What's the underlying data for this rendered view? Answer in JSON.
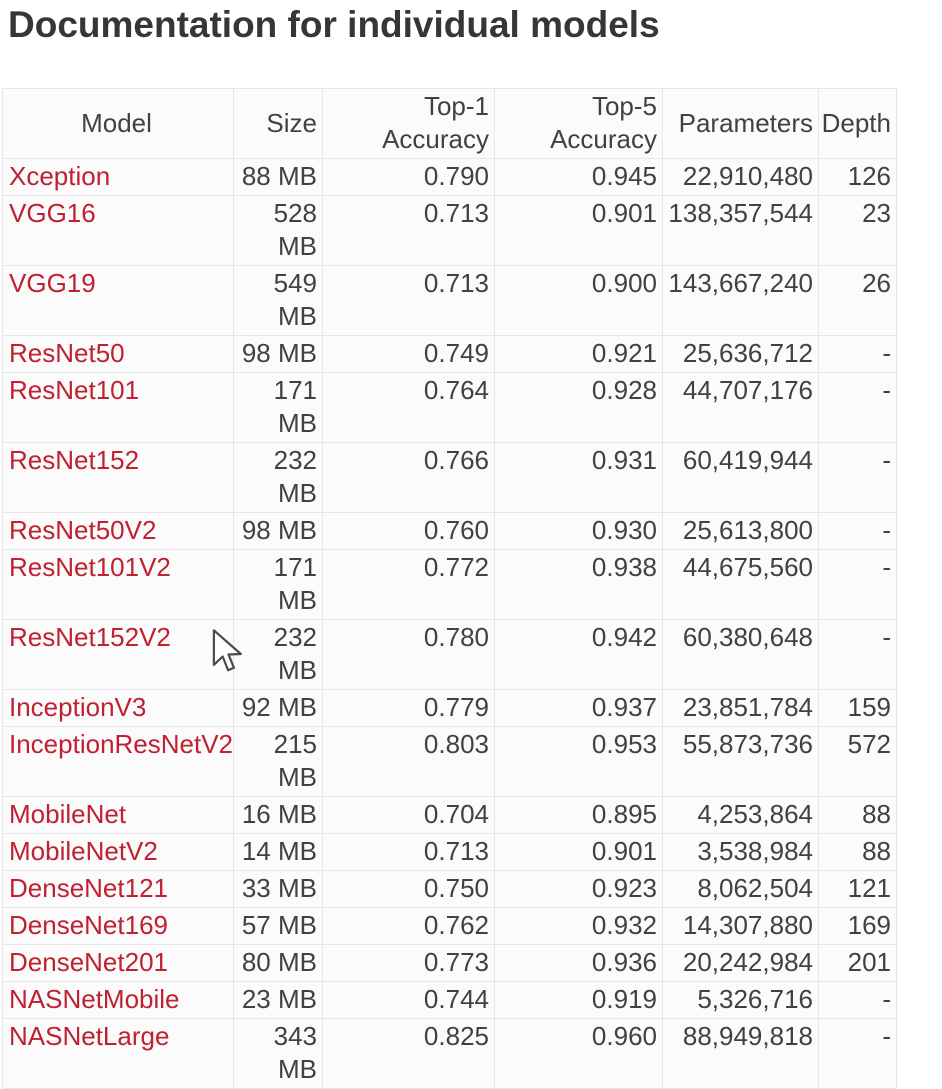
{
  "page": {
    "title": "Documentation for individual models"
  },
  "colors": {
    "link": "#bf2130",
    "text": "#3e4145",
    "border": "#e6e6e6",
    "cell_bg": "#fbfbfb",
    "title": "#363636"
  },
  "cursor": {
    "icon": "arrow-pointer"
  },
  "table": {
    "columns": [
      {
        "key": "model",
        "label": "Model"
      },
      {
        "key": "size",
        "label": "Size"
      },
      {
        "key": "top1",
        "label": "Top-1 Accuracy"
      },
      {
        "key": "top5",
        "label": "Top-5 Accuracy"
      },
      {
        "key": "params",
        "label": "Parameters"
      },
      {
        "key": "depth",
        "label": "Depth"
      }
    ],
    "rows": [
      {
        "model": "Xception",
        "size": "88 MB",
        "top1": "0.790",
        "top5": "0.945",
        "params": "22,910,480",
        "depth": "126"
      },
      {
        "model": "VGG16",
        "size": "528 MB",
        "top1": "0.713",
        "top5": "0.901",
        "params": "138,357,544",
        "depth": "23"
      },
      {
        "model": "VGG19",
        "size": "549 MB",
        "top1": "0.713",
        "top5": "0.900",
        "params": "143,667,240",
        "depth": "26"
      },
      {
        "model": "ResNet50",
        "size": "98 MB",
        "top1": "0.749",
        "top5": "0.921",
        "params": "25,636,712",
        "depth": "-"
      },
      {
        "model": "ResNet101",
        "size": "171 MB",
        "top1": "0.764",
        "top5": "0.928",
        "params": "44,707,176",
        "depth": "-"
      },
      {
        "model": "ResNet152",
        "size": "232 MB",
        "top1": "0.766",
        "top5": "0.931",
        "params": "60,419,944",
        "depth": "-"
      },
      {
        "model": "ResNet50V2",
        "size": "98 MB",
        "top1": "0.760",
        "top5": "0.930",
        "params": "25,613,800",
        "depth": "-"
      },
      {
        "model": "ResNet101V2",
        "size": "171 MB",
        "top1": "0.772",
        "top5": "0.938",
        "params": "44,675,560",
        "depth": "-"
      },
      {
        "model": "ResNet152V2",
        "size": "232 MB",
        "top1": "0.780",
        "top5": "0.942",
        "params": "60,380,648",
        "depth": "-"
      },
      {
        "model": "InceptionV3",
        "size": "92 MB",
        "top1": "0.779",
        "top5": "0.937",
        "params": "23,851,784",
        "depth": "159"
      },
      {
        "model": "InceptionResNetV2",
        "size": "215 MB",
        "top1": "0.803",
        "top5": "0.953",
        "params": "55,873,736",
        "depth": "572"
      },
      {
        "model": "MobileNet",
        "size": "16 MB",
        "top1": "0.704",
        "top5": "0.895",
        "params": "4,253,864",
        "depth": "88"
      },
      {
        "model": "MobileNetV2",
        "size": "14 MB",
        "top1": "0.713",
        "top5": "0.901",
        "params": "3,538,984",
        "depth": "88"
      },
      {
        "model": "DenseNet121",
        "size": "33 MB",
        "top1": "0.750",
        "top5": "0.923",
        "params": "8,062,504",
        "depth": "121"
      },
      {
        "model": "DenseNet169",
        "size": "57 MB",
        "top1": "0.762",
        "top5": "0.932",
        "params": "14,307,880",
        "depth": "169"
      },
      {
        "model": "DenseNet201",
        "size": "80 MB",
        "top1": "0.773",
        "top5": "0.936",
        "params": "20,242,984",
        "depth": "201"
      },
      {
        "model": "NASNetMobile",
        "size": "23 MB",
        "top1": "0.744",
        "top5": "0.919",
        "params": "5,326,716",
        "depth": "-"
      },
      {
        "model": "NASNetLarge",
        "size": "343 MB",
        "top1": "0.825",
        "top5": "0.960",
        "params": "88,949,818",
        "depth": "-"
      }
    ]
  }
}
